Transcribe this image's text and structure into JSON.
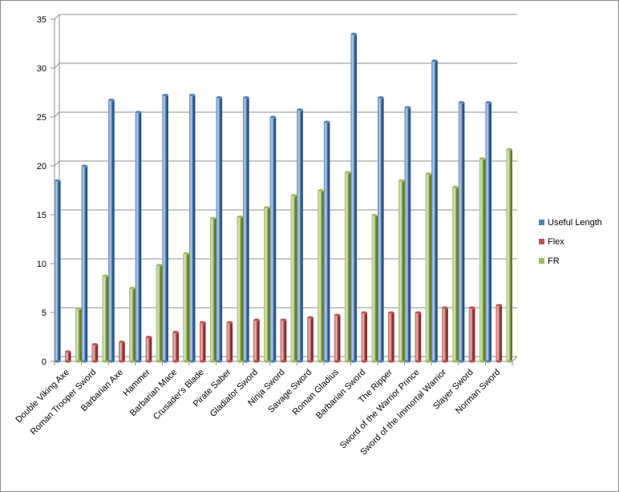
{
  "chart_data": {
    "type": "bar",
    "categories": [
      "Double Viking Axe",
      "Roman Trooper Sword",
      "Barbarian Axe",
      "Hammer",
      "Barbarian Mace",
      "Crusader's Blade",
      "Pirate Saber",
      "Gladiator Sword",
      "Ninja Sword",
      "Savage Sword",
      "Roman Gladius",
      "Barbarian Sword",
      "The Ripper",
      "Sword of the Warrior Prince",
      "Sword of the Immortal  Warrior",
      "Slayer Sword",
      "Norman Sword"
    ],
    "series": [
      {
        "name": "Useful Length",
        "color": "#4f81bd",
        "values": [
          18.5,
          20,
          26.75,
          25.5,
          27.25,
          27.25,
          27,
          27,
          25,
          25.75,
          24.5,
          33.5,
          27,
          26,
          30.75,
          26.5,
          26.5
        ]
      },
      {
        "name": "Flex",
        "color": "#c0504d",
        "values": [
          1,
          1.75,
          2,
          2.5,
          3,
          4,
          4,
          4.25,
          4.25,
          4.5,
          4.75,
          5,
          5,
          5,
          5.5,
          5.5,
          5.75
        ]
      },
      {
        "name": "FR",
        "color": "#9bbb59",
        "values": [
          5.4,
          8.75,
          7.5,
          9.85,
          11.05,
          14.65,
          14.8,
          15.75,
          17,
          17.5,
          19.35,
          14.95,
          18.5,
          19.2,
          17.85,
          20.75,
          21.7
        ]
      }
    ],
    "yticks": [
      0,
      5,
      10,
      15,
      20,
      25,
      30,
      35
    ],
    "ylim": [
      0,
      35
    ],
    "grid": true,
    "legend_position": "right",
    "style": "3d-cylinder"
  }
}
